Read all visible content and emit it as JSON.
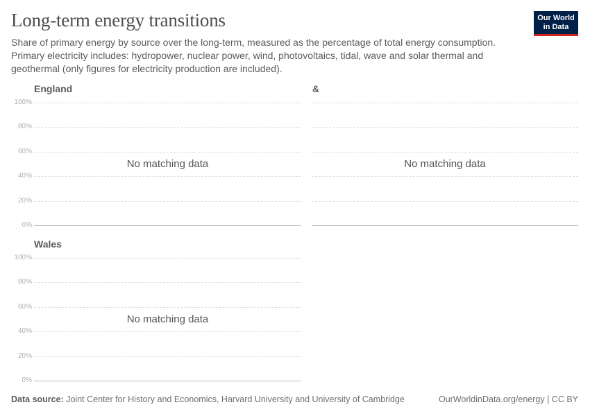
{
  "header": {
    "title": "Long-term energy transitions",
    "subtitle": "Share of primary energy by source over the long-term, measured as the percentage of total energy consumption. Primary electricity includes: hydropower, nuclear power, wind, photovoltaics, tidal, wave and solar thermal and geothermal (only figures for electricity production are included).",
    "logo_line1": "Our World",
    "logo_line2": "in Data",
    "logo_colors": {
      "background": "#002147",
      "accent": "#ce261e"
    }
  },
  "chart_data": [
    {
      "type": "area",
      "title": "England",
      "ylim": [
        0,
        100
      ],
      "y_ticks": [
        "0%",
        "20%",
        "40%",
        "60%",
        "80%",
        "100%"
      ],
      "message": "No matching data",
      "series": []
    },
    {
      "type": "area",
      "title": "&",
      "ylim": [
        0,
        100
      ],
      "y_ticks": [],
      "message": "No matching data",
      "series": []
    },
    {
      "type": "area",
      "title": "Wales",
      "ylim": [
        0,
        100
      ],
      "y_ticks": [
        "0%",
        "20%",
        "40%",
        "60%",
        "80%",
        "100%"
      ],
      "message": "No matching data",
      "series": []
    }
  ],
  "footer": {
    "source_label": "Data source:",
    "source_text": "Joint Center for History and Economics, Harvard University and University of Cambridge",
    "link": "OurWorldinData.org/energy | CC BY"
  }
}
